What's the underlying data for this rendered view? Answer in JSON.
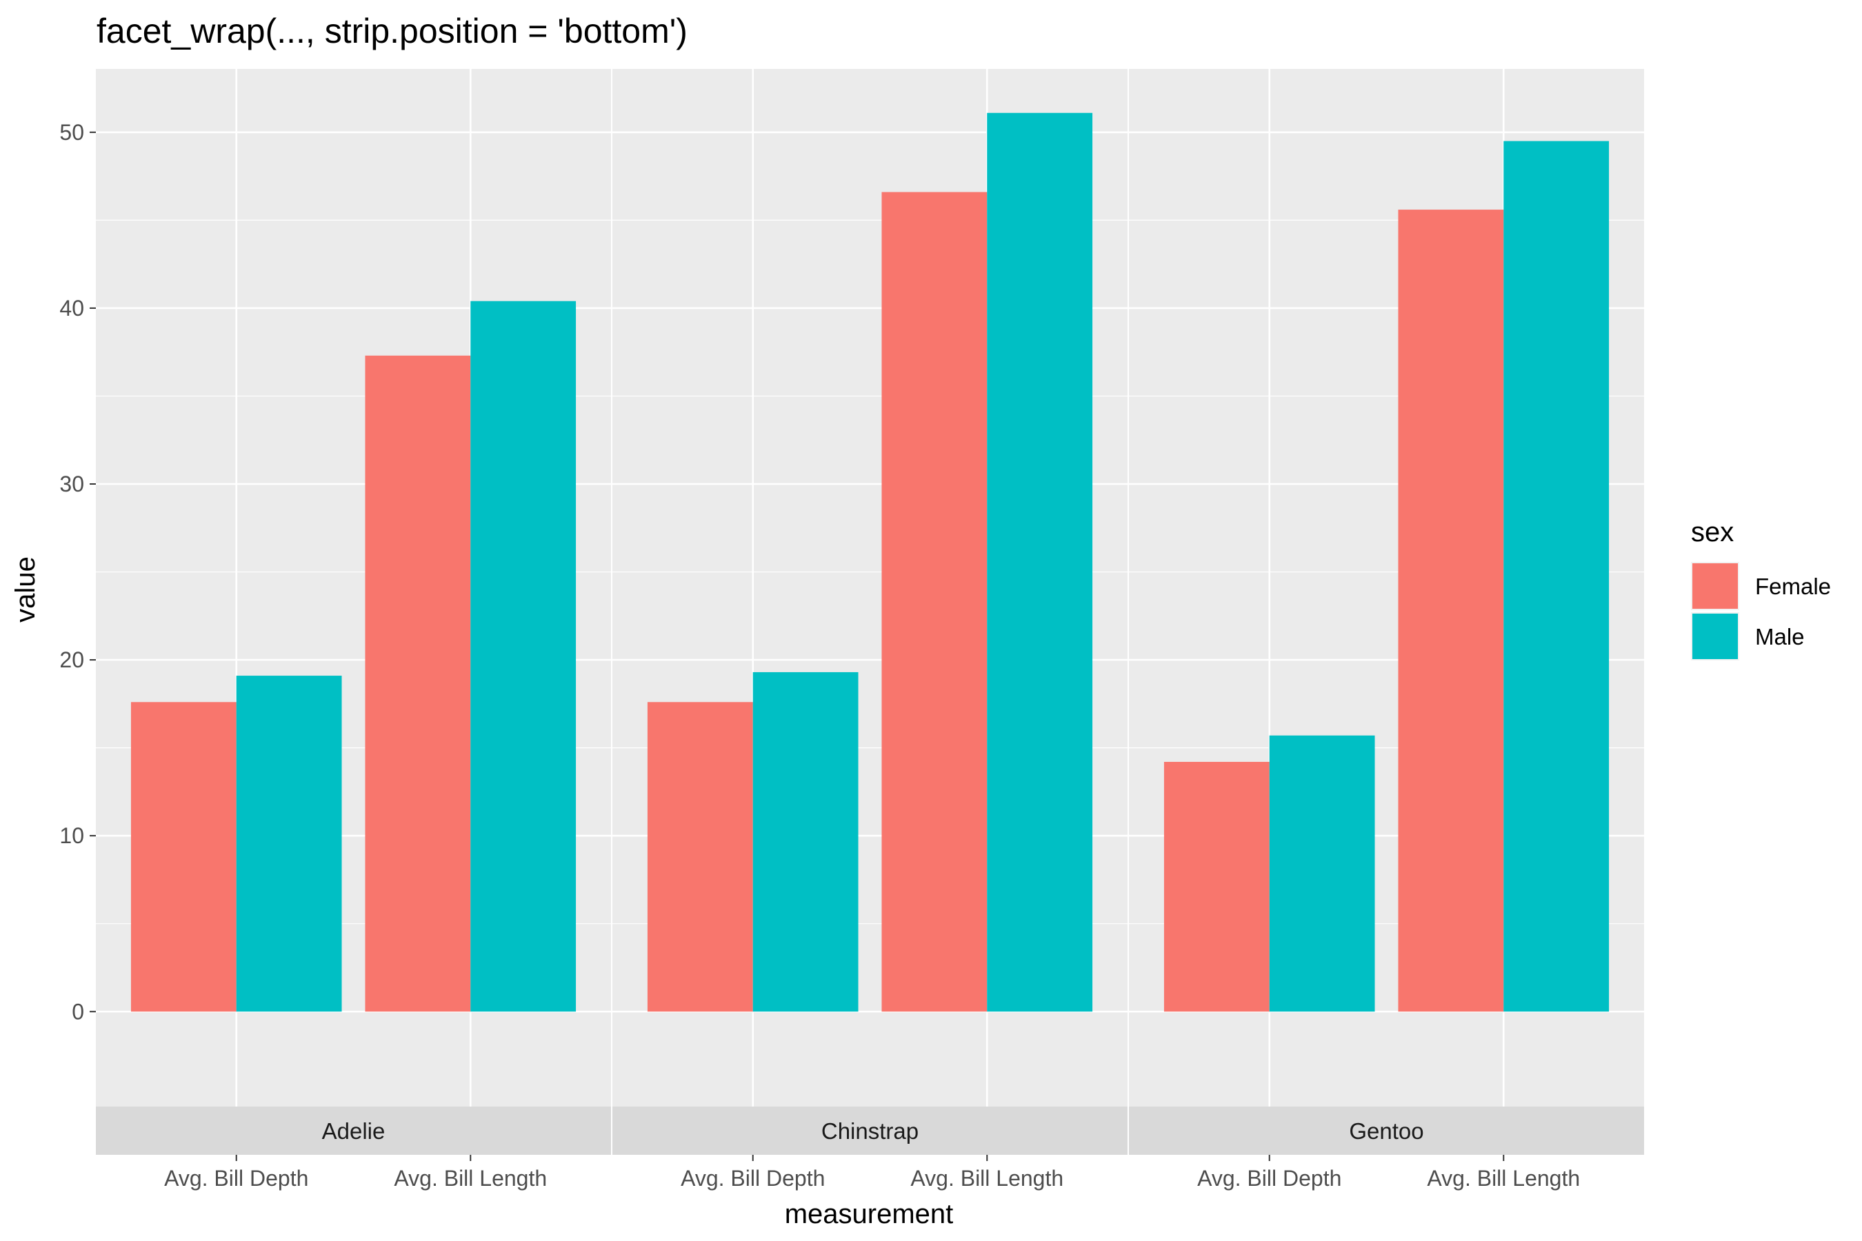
{
  "chart_data": {
    "type": "bar",
    "title": "facet_wrap(..., strip.position = 'bottom')",
    "xlabel": "measurement",
    "ylabel": "value",
    "ylim": [
      -5.4,
      53.6
    ],
    "yticks": [
      0,
      10,
      20,
      30,
      40,
      50
    ],
    "grid": true,
    "legend": {
      "title": "sex",
      "position": "right"
    },
    "categories": [
      "Avg. Bill Depth",
      "Avg. Bill Length"
    ],
    "facets": [
      {
        "name": "Adelie",
        "series": [
          {
            "name": "Female",
            "values": [
              17.6,
              37.3
            ]
          },
          {
            "name": "Male",
            "values": [
              19.1,
              40.4
            ]
          }
        ]
      },
      {
        "name": "Chinstrap",
        "series": [
          {
            "name": "Female",
            "values": [
              17.6,
              46.6
            ]
          },
          {
            "name": "Male",
            "values": [
              19.3,
              51.1
            ]
          }
        ]
      },
      {
        "name": "Gentoo",
        "series": [
          {
            "name": "Female",
            "values": [
              14.2,
              45.6
            ]
          },
          {
            "name": "Male",
            "values": [
              15.7,
              49.5
            ]
          }
        ]
      }
    ],
    "colors": {
      "Female": "#F8766D",
      "Male": "#00BFC4"
    }
  }
}
